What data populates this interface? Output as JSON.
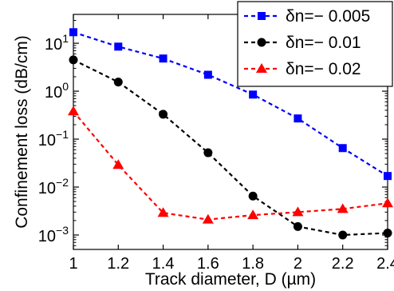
{
  "chart_data": {
    "type": "line",
    "xlabel": "Track diameter, D (µm)",
    "ylabel": "Confinement loss (dB/cm)",
    "xlim": [
      1,
      2.4
    ],
    "ylim": [
      0.0005,
      40
    ],
    "yscale": "log",
    "grid": false,
    "legend_position": "top-right",
    "x_tick_labels": [
      "1",
      "1.2",
      "1.4",
      "1.6",
      "1.8",
      "2",
      "2.2",
      "2.4"
    ],
    "y_tick_labels": [
      {
        "base": "10",
        "exp": "1"
      },
      {
        "base": "10",
        "exp": "0"
      },
      {
        "base": "10",
        "exp": "−1"
      },
      {
        "base": "10",
        "exp": "−2"
      },
      {
        "base": "10",
        "exp": "−3"
      }
    ],
    "x": [
      1,
      1.2,
      1.4,
      1.6,
      1.8,
      2,
      2.2,
      2.4
    ],
    "series": [
      {
        "name": "δn=− 0.005",
        "color": "#0000ff",
        "marker": "square",
        "values": [
          17,
          8.5,
          4.8,
          2.2,
          0.85,
          0.27,
          0.065,
          0.017
        ]
      },
      {
        "name": "δn=− 0.01",
        "color": "#000000",
        "marker": "circle",
        "values": [
          4.5,
          1.55,
          0.33,
          0.052,
          0.0065,
          0.0015,
          0.001,
          0.0011
        ]
      },
      {
        "name": "δn=− 0.02",
        "color": "#ff0000",
        "marker": "triangle",
        "values": [
          0.38,
          0.029,
          0.0029,
          0.0021,
          0.0026,
          0.003,
          0.0035,
          0.0046
        ]
      }
    ]
  }
}
